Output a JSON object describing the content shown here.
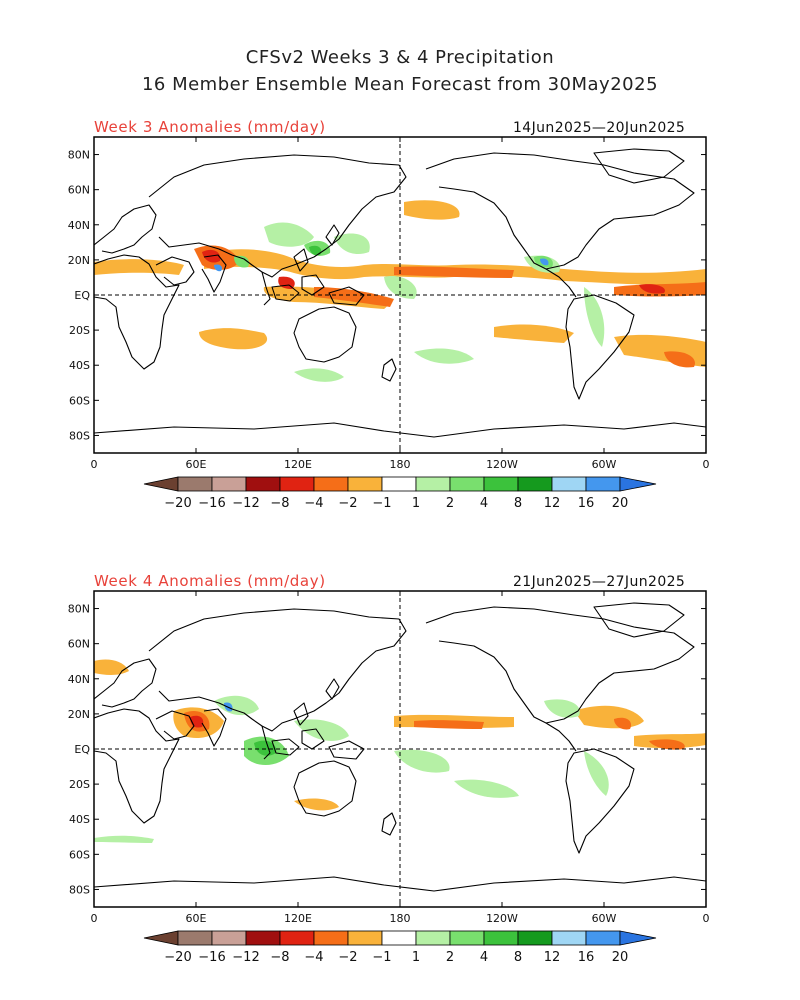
{
  "header": {
    "title_line1": "CFSv2 Weeks 3 & 4 Precipitation",
    "title_line2": "16 Member Ensemble Mean Forecast from 30May2025"
  },
  "panels": [
    {
      "id": "week3",
      "title": "Week 3 Anomalies (mm/day)",
      "date_range": "14Jun2025—20Jun2025"
    },
    {
      "id": "week4",
      "title": "Week 4 Anomalies (mm/day)",
      "date_range": "21Jun2025—27Jun2025"
    }
  ],
  "axes": {
    "lat_labels": [
      "80N",
      "60N",
      "40N",
      "20N",
      "EQ",
      "20S",
      "40S",
      "60S",
      "80S"
    ],
    "lat_values": [
      80,
      60,
      40,
      20,
      0,
      -20,
      -40,
      -60,
      -80
    ],
    "lon_labels": [
      "0",
      "60E",
      "120E",
      "180",
      "120W",
      "60W",
      "0"
    ],
    "lon_values": [
      0,
      60,
      120,
      180,
      240,
      300,
      360
    ]
  },
  "colorbar": {
    "tick_labels": [
      "−20",
      "−16",
      "−12",
      "−8",
      "−4",
      "−2",
      "−1",
      "1",
      "2",
      "4",
      "8",
      "12",
      "16",
      "20"
    ],
    "colors": [
      "#9b7a6d",
      "#c9a097",
      "#a00f0f",
      "#e02312",
      "#f56e18",
      "#f9b23a",
      "#ffffff",
      "#b5f0a5",
      "#79df6e",
      "#3cc23c",
      "#159a1e",
      "#9fd6f4",
      "#4497ee"
    ],
    "low_cap_color": "#6b4030",
    "high_cap_color": "#2a74e0"
  },
  "colors": {
    "wet_light": "#b5f0a5",
    "wet": "#79df6e",
    "wet_mod": "#3cc23c",
    "wet_strong": "#159a1e",
    "wet_extreme": "#4497ee",
    "dry_light": "#f9b23a",
    "dry": "#f56e18",
    "dry_mod": "#e02312",
    "dry_strong": "#a00f0f"
  }
}
